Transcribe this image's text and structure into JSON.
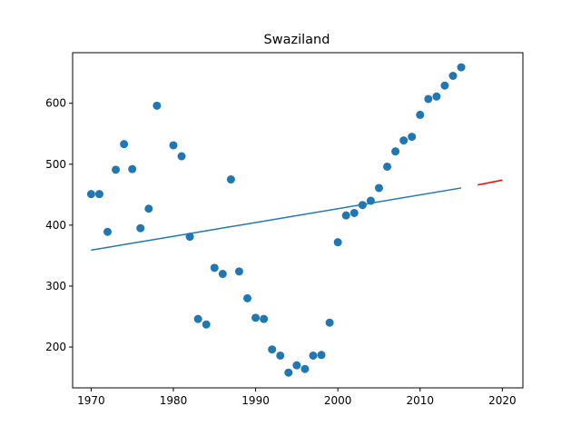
{
  "chart_data": {
    "type": "scatter",
    "title": "Swaziland",
    "xlabel": "",
    "ylabel": "",
    "xlim": [
      1967.75,
      2022.5
    ],
    "ylim": [
      133,
      683
    ],
    "xticks": [
      1970,
      1980,
      1990,
      2000,
      2010,
      2020
    ],
    "yticks": [
      200,
      300,
      400,
      500,
      600
    ],
    "grid": false,
    "colors": {
      "points": "#1f77b4",
      "trend": "#1f77b4",
      "forecast": "#ff0000"
    },
    "series": [
      {
        "kind": "scatter",
        "x": [
          1970,
          1971,
          1972,
          1973,
          1974,
          1975,
          1976,
          1977,
          1978,
          1980,
          1981,
          1982,
          1983,
          1984,
          1985,
          1986,
          1987,
          1988,
          1989,
          1990,
          1991,
          1992,
          1993,
          1994,
          1995,
          1996,
          1997,
          1998,
          1999,
          2000,
          2001,
          2002,
          2003,
          2004,
          2005,
          2006,
          2007,
          2008,
          2009,
          2010,
          2011,
          2012,
          2013,
          2014,
          2015
        ],
        "y": [
          451,
          451,
          389,
          491,
          533,
          492,
          395,
          427,
          596,
          531,
          513,
          381,
          246,
          237,
          330,
          320,
          475,
          324,
          280,
          248,
          246,
          196,
          186,
          158,
          170,
          164,
          186,
          187,
          240,
          372,
          416,
          420,
          433,
          440,
          461,
          496,
          521,
          539,
          545,
          581,
          607,
          611,
          629,
          645,
          659
        ]
      },
      {
        "kind": "line",
        "x": [
          1970,
          2015
        ],
        "y": [
          359,
          461
        ]
      },
      {
        "kind": "line",
        "x": [
          2017,
          2020
        ],
        "y": [
          466,
          474
        ]
      }
    ]
  }
}
